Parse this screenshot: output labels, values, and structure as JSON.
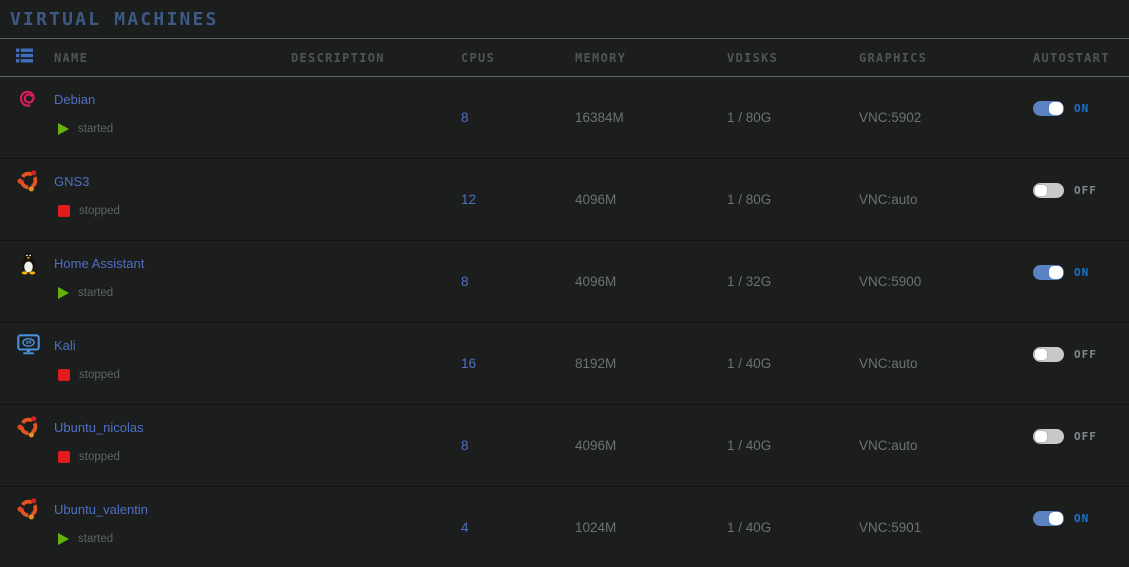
{
  "page": {
    "title": "VIRTUAL MACHINES"
  },
  "table": {
    "view_icon": "list-icon",
    "headers": {
      "name": "NAME",
      "description": "DESCRIPTION",
      "cpus": "CPUS",
      "memory": "MEMORY",
      "vdisks": "VDISKS",
      "graphics": "GRAPHICS",
      "autostart": "AUTOSTART"
    },
    "rows": [
      {
        "name": "Debian",
        "icon": "debian",
        "state": "started",
        "description": "",
        "cpus": "8",
        "memory": "16384M",
        "vdisks": "1 / 80G",
        "graphics": "VNC:5902",
        "autostart": true,
        "autostart_label": "ON"
      },
      {
        "name": "GNS3",
        "icon": "ubuntu",
        "state": "stopped",
        "description": "",
        "cpus": "12",
        "memory": "4096M",
        "vdisks": "1 / 80G",
        "graphics": "VNC:auto",
        "autostart": false,
        "autostart_label": "OFF"
      },
      {
        "name": "Home Assistant",
        "icon": "tux",
        "state": "started",
        "description": "",
        "cpus": "8",
        "memory": "4096M",
        "vdisks": "1 / 32G",
        "graphics": "VNC:5900",
        "autostart": true,
        "autostart_label": "ON"
      },
      {
        "name": "Kali",
        "icon": "vm",
        "state": "stopped",
        "description": "",
        "cpus": "16",
        "memory": "8192M",
        "vdisks": "1 / 40G",
        "graphics": "VNC:auto",
        "autostart": false,
        "autostart_label": "OFF"
      },
      {
        "name": "Ubuntu_nicolas",
        "icon": "ubuntu",
        "state": "stopped",
        "description": "",
        "cpus": "8",
        "memory": "4096M",
        "vdisks": "1 / 40G",
        "graphics": "VNC:auto",
        "autostart": false,
        "autostart_label": "OFF"
      },
      {
        "name": "Ubuntu_valentin",
        "icon": "ubuntu",
        "state": "started",
        "description": "",
        "cpus": "4",
        "memory": "1024M",
        "vdisks": "1 / 40G",
        "graphics": "VNC:5901",
        "autostart": true,
        "autostart_label": "ON"
      }
    ]
  },
  "colors": {
    "background": "#1c1e1d",
    "title_blue": "#3c5a85",
    "link_blue": "#4e6fc4",
    "started_green": "#67b10f",
    "stopped_red": "#e21b1f",
    "toggle_on_track": "#5b83c3",
    "on_label_blue": "#1a74cf",
    "off_label_gray": "#82888f",
    "header_icon_blue": "#3f6ec0",
    "debian_swirl_red": "#d81e5b",
    "ubuntu_orange": "#e95420",
    "vm_monitor_blue": "#4a90d9"
  }
}
